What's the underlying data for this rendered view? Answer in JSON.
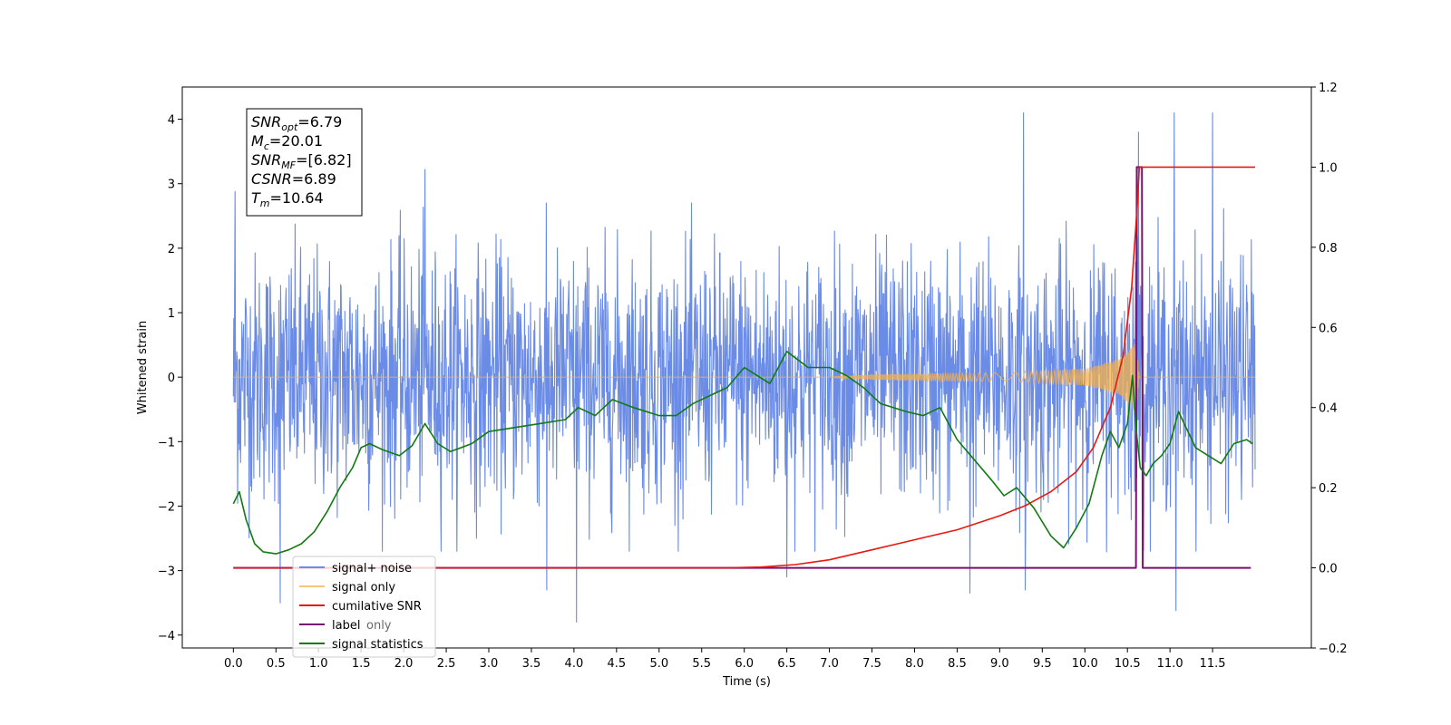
{
  "chart_data": {
    "type": "line",
    "title": "",
    "xlabel": "Time (s)",
    "ylabel": "Whitened strain",
    "xlim": [
      -0.6,
      12.66
    ],
    "ylim": [
      -4.2,
      4.5
    ],
    "y2lim": [
      -0.2,
      1.2
    ],
    "x_ticks": [
      0.0,
      0.5,
      1.0,
      1.5,
      2.0,
      2.5,
      3.0,
      3.5,
      4.0,
      4.5,
      5.0,
      5.5,
      6.0,
      6.5,
      7.0,
      7.5,
      8.0,
      8.5,
      9.0,
      9.5,
      10.0,
      10.5,
      11.0,
      11.5
    ],
    "x_tick_labels": [
      "0.0",
      "0.5",
      "1.0",
      "1.5",
      "2.0",
      "2.5",
      "3.0",
      "3.5",
      "4.0",
      "4.5",
      "5.0",
      "5.5",
      "6.0",
      "6.5",
      "7.0",
      "7.5",
      "8.0",
      "8.5",
      "9.0",
      "9.5",
      "10.0",
      "10.5",
      "11.0",
      "11.5"
    ],
    "y_ticks": [
      -4,
      -3,
      -2,
      -1,
      0,
      1,
      2,
      3,
      4
    ],
    "y_tick_labels": [
      "−4",
      "−3",
      "−2",
      "−1",
      "0",
      "1",
      "2",
      "3",
      "4"
    ],
    "y2_ticks": [
      -0.2,
      0.0,
      0.2,
      0.4,
      0.6,
      0.8,
      1.0,
      1.2
    ],
    "y2_tick_labels": [
      "−0.2",
      "0.0",
      "0.2",
      "0.4",
      "0.6",
      "0.8",
      "1.0",
      "1.2"
    ],
    "grid": false,
    "legend_position": "bottom-left",
    "colors": {
      "signal_noise": "#6a8be6",
      "signal_only": "#f5b04a",
      "cumulative_snr": "#e8190f",
      "label": "#7a1172",
      "signal_statistics": "#137a13"
    },
    "noise_envelope": {
      "t_start": 0.0,
      "t_end": 12.0,
      "typical_amplitude": 1.8,
      "max_peaks": [
        {
          "t": 0.02,
          "v": 2.88
        },
        {
          "t": 0.55,
          "v": -3.5
        },
        {
          "t": 2.25,
          "v": 3.22
        },
        {
          "t": 3.68,
          "v": -3.3
        },
        {
          "t": 4.03,
          "v": -3.8
        },
        {
          "t": 6.5,
          "v": -3.1
        },
        {
          "t": 8.65,
          "v": -3.35
        },
        {
          "t": 9.28,
          "v": 4.1
        },
        {
          "t": 9.3,
          "v": -3.3
        },
        {
          "t": 10.63,
          "v": 3.8
        },
        {
          "t": 11.05,
          "v": 4.1
        },
        {
          "t": 11.07,
          "v": -3.62
        },
        {
          "t": 11.5,
          "v": 4.1
        }
      ]
    },
    "signal_only": {
      "description_free": true,
      "t_start": 0.0,
      "t_end": 10.64,
      "amplitude_points": [
        {
          "t": 0.0,
          "a": 0.0
        },
        {
          "t": 7.0,
          "a": 0.0
        },
        {
          "t": 7.5,
          "a": 0.04
        },
        {
          "t": 9.0,
          "a": 0.07
        },
        {
          "t": 10.0,
          "a": 0.13
        },
        {
          "t": 10.4,
          "a": 0.28
        },
        {
          "t": 10.6,
          "a": 0.55
        },
        {
          "t": 10.64,
          "a": 0.0
        }
      ]
    },
    "series": [
      {
        "name": "signal+ noise",
        "axis": "left"
      },
      {
        "name": "signal only",
        "axis": "left"
      },
      {
        "name": "cumilative SNR",
        "axis": "right",
        "x": [
          0.0,
          5.8,
          6.2,
          6.6,
          7.0,
          7.5,
          8.0,
          8.5,
          9.0,
          9.3,
          9.6,
          9.9,
          10.1,
          10.3,
          10.45,
          10.55,
          10.62,
          10.64,
          11.0,
          11.5,
          12.0
        ],
        "y": [
          0.0,
          0.0,
          0.002,
          0.008,
          0.02,
          0.045,
          0.07,
          0.095,
          0.13,
          0.155,
          0.19,
          0.24,
          0.3,
          0.4,
          0.53,
          0.7,
          0.92,
          1.0,
          1.0,
          1.0,
          1.0
        ]
      },
      {
        "name": "label",
        "axis": "right",
        "x": [
          0.0,
          10.55,
          10.6,
          10.61,
          10.67,
          10.68,
          11.95
        ],
        "y": [
          0.0,
          0.0,
          0.0,
          1.0,
          1.0,
          0.0,
          0.0
        ]
      },
      {
        "name": "signal statistics",
        "axis": "right",
        "x": [
          0.0,
          0.07,
          0.15,
          0.25,
          0.35,
          0.5,
          0.65,
          0.8,
          0.95,
          1.1,
          1.25,
          1.4,
          1.5,
          1.6,
          1.75,
          1.95,
          2.1,
          2.25,
          2.4,
          2.55,
          2.8,
          3.0,
          3.3,
          3.6,
          3.9,
          4.05,
          4.25,
          4.45,
          4.7,
          5.0,
          5.2,
          5.4,
          5.6,
          5.8,
          6.0,
          6.15,
          6.3,
          6.5,
          6.75,
          7.0,
          7.2,
          7.4,
          7.6,
          7.9,
          8.1,
          8.3,
          8.5,
          8.7,
          8.9,
          9.05,
          9.2,
          9.4,
          9.6,
          9.75,
          9.9,
          10.05,
          10.2,
          10.3,
          10.4,
          10.5,
          10.56,
          10.6,
          10.65,
          10.72,
          10.8,
          10.9,
          11.0,
          11.1,
          11.3,
          11.45,
          11.6,
          11.75,
          11.9,
          11.97
        ],
        "y": [
          0.16,
          0.19,
          0.12,
          0.06,
          0.04,
          0.035,
          0.045,
          0.06,
          0.09,
          0.14,
          0.2,
          0.25,
          0.3,
          0.31,
          0.295,
          0.28,
          0.305,
          0.36,
          0.31,
          0.29,
          0.31,
          0.34,
          0.35,
          0.36,
          0.37,
          0.4,
          0.38,
          0.42,
          0.4,
          0.38,
          0.38,
          0.41,
          0.43,
          0.45,
          0.5,
          0.48,
          0.46,
          0.54,
          0.5,
          0.5,
          0.48,
          0.45,
          0.41,
          0.39,
          0.38,
          0.4,
          0.32,
          0.27,
          0.22,
          0.18,
          0.2,
          0.15,
          0.08,
          0.05,
          0.1,
          0.16,
          0.28,
          0.34,
          0.3,
          0.36,
          0.48,
          0.35,
          0.25,
          0.23,
          0.26,
          0.28,
          0.31,
          0.39,
          0.3,
          0.28,
          0.26,
          0.31,
          0.32,
          0.31
        ]
      }
    ],
    "legend": {
      "entries": [
        "signal+ noise",
        "signal only",
        "cumilative SNR",
        "label",
        "signal statistics"
      ],
      "ghost_text": "label only"
    },
    "annotation_box": {
      "lines": [
        {
          "base": "SNR",
          "sub": "opt",
          "rest": "=6.79"
        },
        {
          "base": "M",
          "sub": "c",
          "rest": "=20.01"
        },
        {
          "base": "SNR",
          "sub": "MF",
          "rest": "=[6.82]"
        },
        {
          "base": "CSNR",
          "sub": "",
          "rest": "=6.89"
        },
        {
          "base": "T",
          "sub": "m",
          "rest": "=10.64"
        }
      ]
    }
  }
}
